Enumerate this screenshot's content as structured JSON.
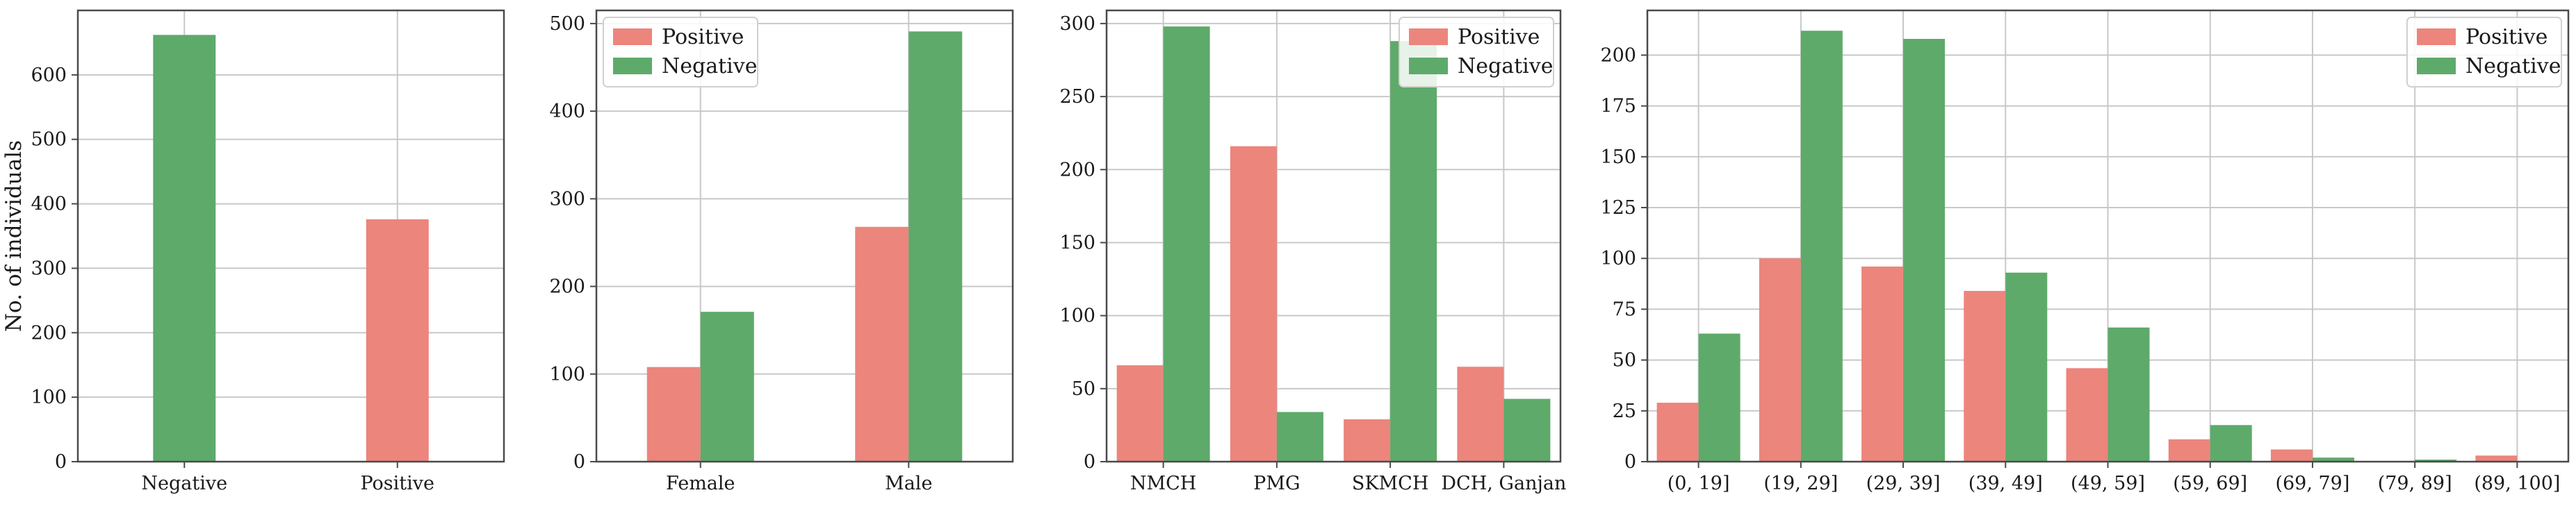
{
  "colors": {
    "positive": "#ec857c",
    "negative": "#5eaa6a",
    "grid": "#c8c8c8",
    "frame": "#4a4a4a"
  },
  "chart_data": [
    {
      "type": "bar",
      "categories": [
        "Negative",
        "Positive"
      ],
      "series": [
        {
          "color_key": "negative",
          "values": [
            662,
            0
          ]
        },
        {
          "color_key": "positive",
          "values": [
            0,
            376
          ]
        }
      ],
      "ylabel": "No. of individuals",
      "ylim": [
        0,
        700
      ],
      "yticks": [
        0,
        100,
        200,
        300,
        400,
        500,
        600
      ],
      "grid": true,
      "legend": null
    },
    {
      "type": "bar",
      "categories": [
        "Female",
        "Male"
      ],
      "series": [
        {
          "name": "Positive",
          "color_key": "positive",
          "values": [
            108,
            268
          ]
        },
        {
          "name": "Negative",
          "color_key": "negative",
          "values": [
            171,
            491
          ]
        }
      ],
      "ylim": [
        0,
        515
      ],
      "yticks": [
        0,
        100,
        200,
        300,
        400,
        500
      ],
      "grid": true,
      "legend": "top-left"
    },
    {
      "type": "bar",
      "categories": [
        "NMCH",
        "PMG",
        "SKMCH",
        "DCH, Ganjan"
      ],
      "series": [
        {
          "name": "Positive",
          "color_key": "positive",
          "values": [
            66,
            216,
            29,
            65
          ]
        },
        {
          "name": "Negative",
          "color_key": "negative",
          "values": [
            298,
            34,
            288,
            43
          ]
        }
      ],
      "ylim": [
        0,
        309
      ],
      "yticks": [
        0,
        50,
        100,
        150,
        200,
        250,
        300
      ],
      "grid": true,
      "legend": "top-right"
    },
    {
      "type": "bar",
      "categories": [
        "(0, 19]",
        "(19, 29]",
        "(29, 39]",
        "(39, 49]",
        "(49, 59]",
        "(59, 69]",
        "(69, 79]",
        "(79, 89]",
        "(89, 100]"
      ],
      "series": [
        {
          "name": "Positive",
          "color_key": "positive",
          "values": [
            29,
            100,
            96,
            84,
            46,
            11,
            6,
            0,
            3
          ]
        },
        {
          "name": "Negative",
          "color_key": "negative",
          "values": [
            63,
            212,
            208,
            93,
            66,
            18,
            2,
            1,
            0
          ]
        }
      ],
      "ylim": [
        0,
        222
      ],
      "yticks": [
        0,
        25,
        50,
        75,
        100,
        125,
        150,
        175,
        200
      ],
      "grid": true,
      "legend": "top-right"
    }
  ]
}
